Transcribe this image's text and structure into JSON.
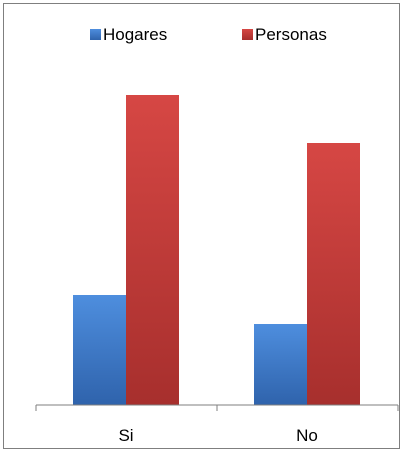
{
  "chart_data": {
    "type": "bar",
    "categories": [
      "Si",
      "No"
    ],
    "series": [
      {
        "name": "Hogares",
        "values": [
          110,
          81
        ],
        "color": "#3b76c4"
      },
      {
        "name": "Personas",
        "values": [
          310,
          262
        ],
        "color": "#c13a38"
      }
    ],
    "ylim": [
      0,
      320
    ],
    "grid": false,
    "legend": "top-center"
  }
}
